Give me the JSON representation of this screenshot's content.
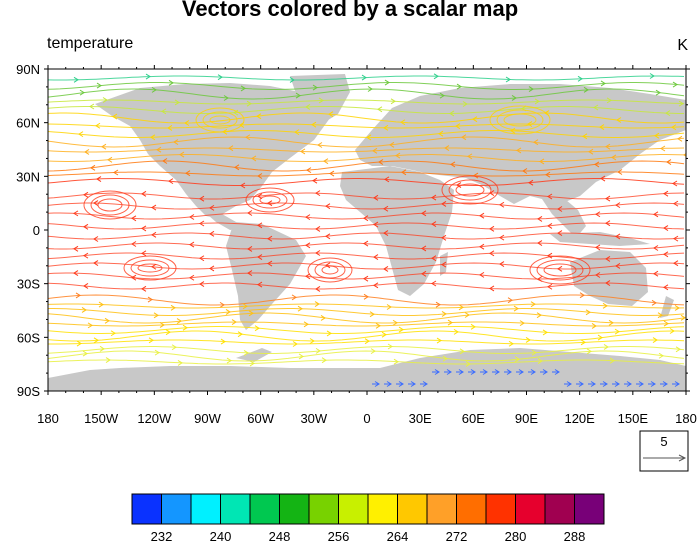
{
  "title": "Vectors colored by a scalar map",
  "left_label": "temperature",
  "right_label": "K",
  "x_ticks": [
    "180",
    "150W",
    "120W",
    "90W",
    "60W",
    "30W",
    "0",
    "30E",
    "60E",
    "90E",
    "120E",
    "150E",
    "180"
  ],
  "y_ticks": [
    "90N",
    "60N",
    "30N",
    "0",
    "30S",
    "60S",
    "90S"
  ],
  "reference_vector": {
    "magnitude": "5"
  },
  "colorbar": {
    "labels": [
      "232",
      "240",
      "248",
      "256",
      "264",
      "272",
      "280",
      "288"
    ],
    "colors": [
      "#0a32ff",
      "#1496ff",
      "#00f0ff",
      "#00e6b4",
      "#00c850",
      "#14b414",
      "#78d200",
      "#c8f000",
      "#fff000",
      "#ffc800",
      "#ffa028",
      "#ff6e00",
      "#ff3200",
      "#e6002d",
      "#a00050",
      "#780078"
    ]
  },
  "land_color": "#c8c8c8"
}
